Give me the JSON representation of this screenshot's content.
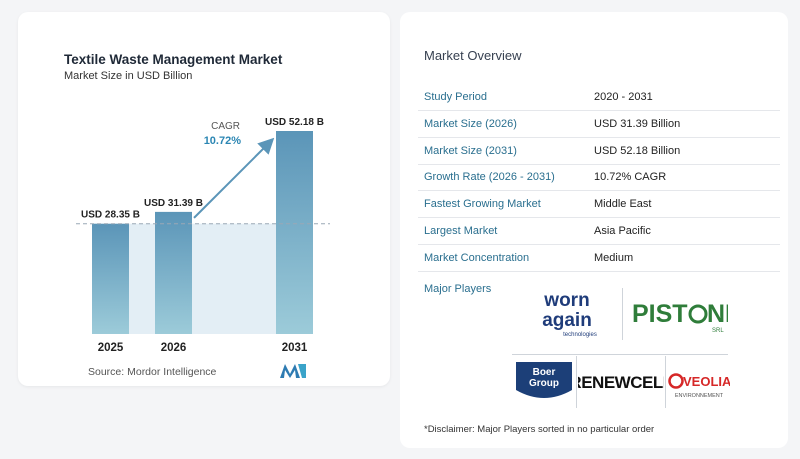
{
  "chart": {
    "title": "Textile Waste Management Market",
    "subtitle": "Market Size in USD Billion",
    "cagr_label": "CAGR",
    "cagr_value": "10.72%",
    "source": "Source:  Mordor Intelligence"
  },
  "chart_data": {
    "type": "bar",
    "categories": [
      "2025",
      "2026",
      "2031"
    ],
    "values": [
      28.35,
      31.39,
      52.18
    ],
    "data_labels": [
      "USD 28.35 B",
      "USD 31.39 B",
      "USD 52.18 B"
    ],
    "ylim": [
      0,
      52.18
    ],
    "grid": false,
    "annotations": [
      "CAGR 10.72%"
    ],
    "colors": {
      "bar_top": "#5b95b8",
      "bar_bottom": "#9ccbd9",
      "area": "#e3eef5",
      "arrow": "#5b95b8",
      "cagr_text": "#2b86b3"
    }
  },
  "overview": {
    "title": "Market Overview",
    "rows": [
      {
        "key": "Study Period",
        "value": "2020 - 2031"
      },
      {
        "key": "Market Size (2026)",
        "value": "USD 31.39 Billion"
      },
      {
        "key": "Market Size (2031)",
        "value": "USD 52.18 Billion"
      },
      {
        "key": "Growth Rate (2026 - 2031)",
        "value": "10.72% CAGR"
      },
      {
        "key": "Fastest Growing Market",
        "value": "Middle East"
      },
      {
        "key": "Largest Market",
        "value": "Asia Pacific"
      },
      {
        "key": "Market Concentration",
        "value": "Medium"
      }
    ],
    "players_label": "Major Players",
    "disclaimer": "*Disclaimer: Major Players sorted in no particular order"
  },
  "logos": {
    "wornagain_1": "worn",
    "wornagain_2": "again",
    "wornagain_3": "technologies",
    "pistoni_1": "PIST",
    "pistoni_2": "NI",
    "pistoni_3": "SRL",
    "boer_1": "Boer",
    "boer_2": "Group",
    "renewcell": "RENEWCELL",
    "veolia_1": "VEOLIA",
    "veolia_2": "ENVIRONNEMENT"
  }
}
